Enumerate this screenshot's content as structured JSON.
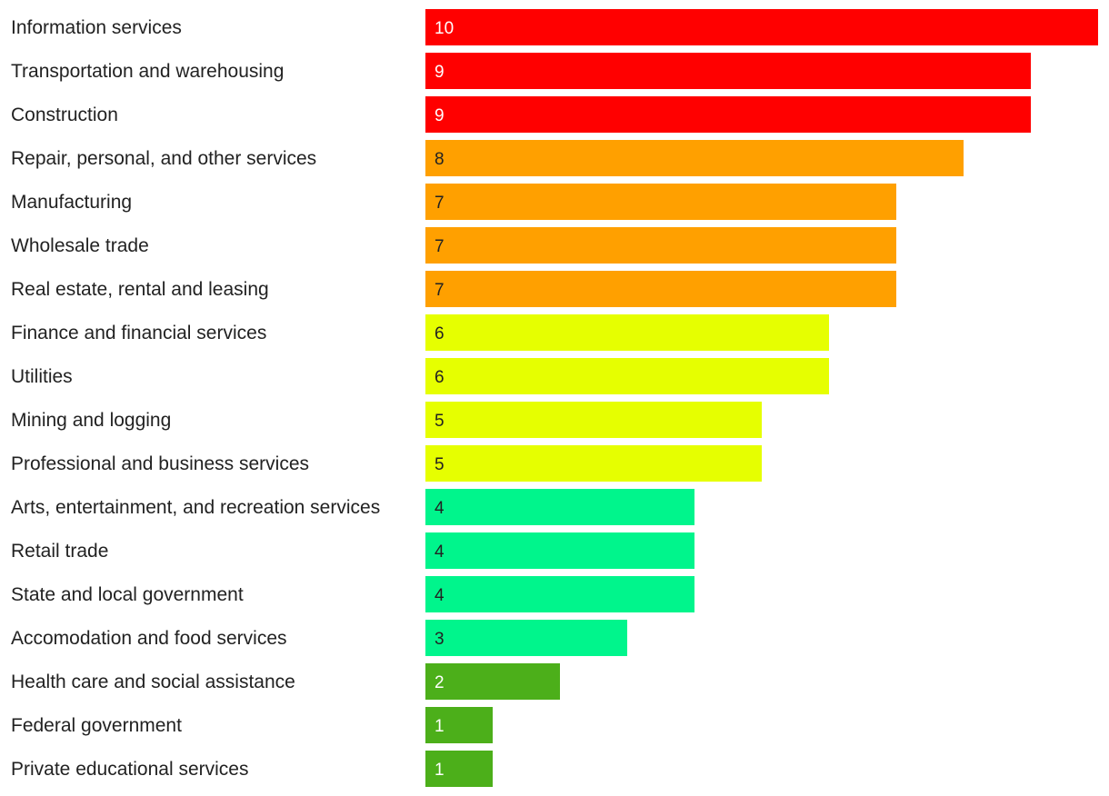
{
  "chart_data": {
    "type": "bar",
    "orientation": "horizontal",
    "title": "",
    "xlabel": "",
    "ylabel": "",
    "xlim": [
      0,
      10
    ],
    "grid": false,
    "categories": [
      "Information services",
      "Transportation and warehousing",
      "Construction",
      "Repair, personal, and other services",
      "Manufacturing",
      "Wholesale trade",
      "Real estate, rental and leasing",
      "Finance and financial services",
      "Utilities",
      "Mining and logging",
      "Professional and business services",
      "Arts, entertainment, and recreation services",
      "Retail trade",
      "State and local government",
      "Accomodation and food services",
      "Health care and social assistance",
      "Federal government",
      "Private educational services"
    ],
    "values": [
      10,
      9,
      9,
      8,
      7,
      7,
      7,
      6,
      6,
      5,
      5,
      4,
      4,
      4,
      3,
      2,
      1,
      1
    ],
    "colors": [
      "#ff0000",
      "#ff0000",
      "#ff0000",
      "#ffa000",
      "#ffa000",
      "#ffa000",
      "#ffa000",
      "#e6ff00",
      "#e6ff00",
      "#e6ff00",
      "#e6ff00",
      "#00f58c",
      "#00f58c",
      "#00f58c",
      "#00f58c",
      "#4caf1a",
      "#4caf1a",
      "#4caf1a"
    ],
    "label_colors": [
      "#ffffff",
      "#ffffff",
      "#ffffff",
      "#222222",
      "#222222",
      "#222222",
      "#222222",
      "#222222",
      "#222222",
      "#222222",
      "#222222",
      "#222222",
      "#222222",
      "#222222",
      "#222222",
      "#ffffff",
      "#ffffff",
      "#ffffff"
    ]
  }
}
